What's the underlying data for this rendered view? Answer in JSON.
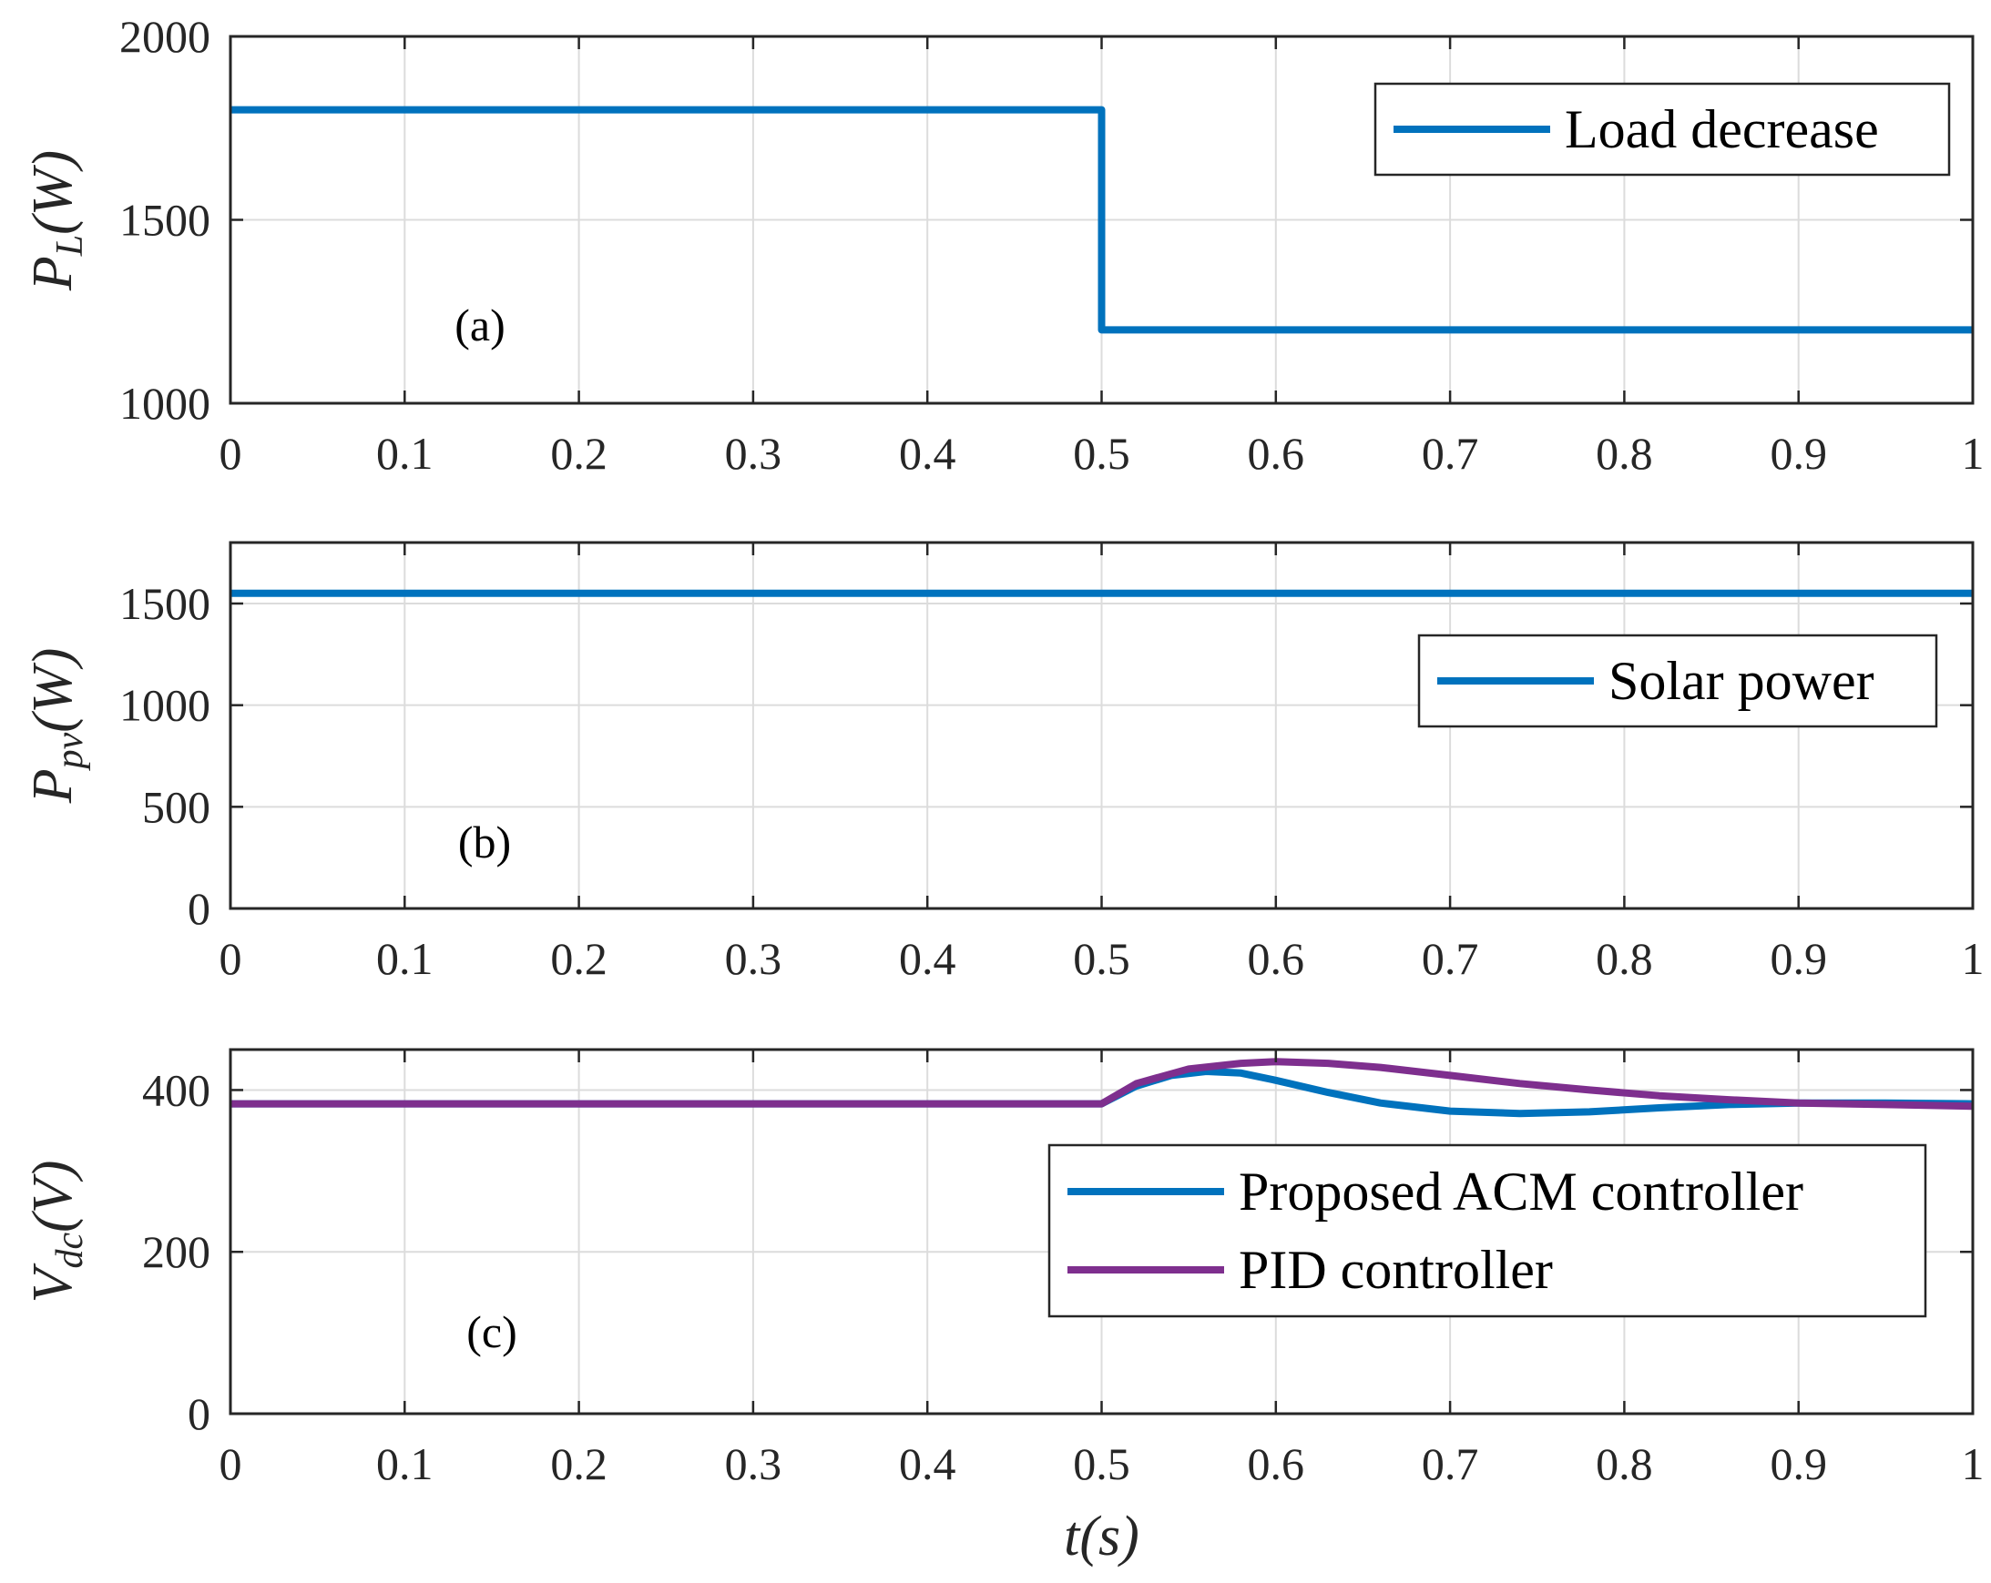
{
  "chart_data": [
    {
      "type": "line",
      "panel_label": "(a)",
      "ylabel_main": "P",
      "ylabel_sub": "L",
      "ylabel_unit": "(W)",
      "xlim": [
        0,
        1
      ],
      "ylim": [
        1000,
        2000
      ],
      "xticks": [
        "0",
        "0.1",
        "0.2",
        "0.3",
        "0.4",
        "0.5",
        "0.6",
        "0.7",
        "0.8",
        "0.9",
        "1"
      ],
      "yticks": [
        "1000",
        "1500",
        "2000"
      ],
      "grid": true,
      "legend_position": "top-right",
      "series": [
        {
          "name": "Load decrease",
          "color": "#0072BD",
          "x": [
            0,
            0.5,
            0.5,
            1
          ],
          "y": [
            1800,
            1800,
            1200,
            1200
          ]
        }
      ]
    },
    {
      "type": "line",
      "panel_label": "(b)",
      "ylabel_main": "P",
      "ylabel_sub": "pv",
      "ylabel_unit": "(W)",
      "xlim": [
        0,
        1
      ],
      "ylim": [
        0,
        1800
      ],
      "xticks": [
        "0",
        "0.1",
        "0.2",
        "0.3",
        "0.4",
        "0.5",
        "0.6",
        "0.7",
        "0.8",
        "0.9",
        "1"
      ],
      "yticks": [
        "0",
        "500",
        "1000",
        "1500"
      ],
      "grid": true,
      "legend_position": "center-right",
      "series": [
        {
          "name": "Solar power",
          "color": "#0072BD",
          "x": [
            0,
            1
          ],
          "y": [
            1550,
            1550
          ]
        }
      ]
    },
    {
      "type": "line",
      "panel_label": "(c)",
      "ylabel_main": "V",
      "ylabel_sub": "dc",
      "ylabel_unit": "(V)",
      "xlim": [
        0,
        1
      ],
      "ylim": [
        0,
        450
      ],
      "xticks": [
        "0",
        "0.1",
        "0.2",
        "0.3",
        "0.4",
        "0.5",
        "0.6",
        "0.7",
        "0.8",
        "0.9",
        "1"
      ],
      "yticks": [
        "0",
        "200",
        "400"
      ],
      "xlabel_main": "t",
      "xlabel_unit": "(s)",
      "grid": true,
      "legend_position": "center-right",
      "series": [
        {
          "name": "Proposed ACM controller",
          "color": "#0072BD",
          "x": [
            0,
            0.5,
            0.52,
            0.54,
            0.56,
            0.58,
            0.6,
            0.63,
            0.66,
            0.7,
            0.74,
            0.78,
            0.82,
            0.86,
            0.9,
            0.95,
            1.0
          ],
          "y": [
            383,
            383,
            405,
            418,
            423,
            421,
            412,
            397,
            384,
            374,
            371,
            373,
            378,
            382,
            384,
            384,
            383
          ]
        },
        {
          "name": "PID controller",
          "color": "#7E2F8E",
          "x": [
            0,
            0.5,
            0.52,
            0.55,
            0.58,
            0.6,
            0.63,
            0.66,
            0.7,
            0.74,
            0.78,
            0.82,
            0.86,
            0.9,
            0.95,
            1.0
          ],
          "y": [
            383,
            383,
            408,
            426,
            433,
            435,
            433,
            428,
            418,
            408,
            400,
            393,
            388,
            384,
            382,
            380
          ]
        }
      ]
    }
  ]
}
